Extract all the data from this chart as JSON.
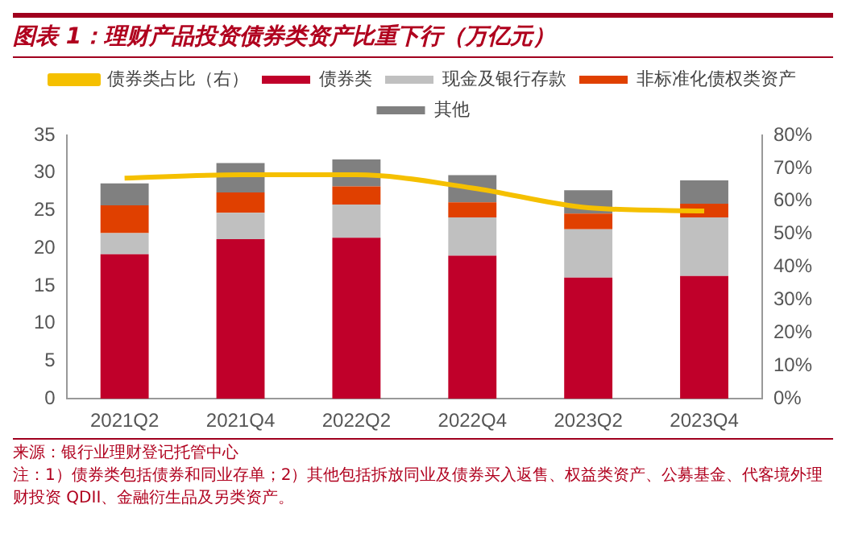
{
  "chart_data": {
    "type": "bar",
    "title": "图表 1：理财产品投资债券类资产比重下行（万亿元）",
    "categories": [
      "2021Q2",
      "2021Q4",
      "2022Q2",
      "2022Q4",
      "2023Q2",
      "2023Q4"
    ],
    "stacked": true,
    "series": [
      {
        "name": "债券类",
        "color": "#c0002a",
        "values": [
          19.2,
          21.2,
          21.4,
          19.0,
          16.1,
          16.3
        ]
      },
      {
        "name": "现金及银行存款",
        "color": "#c0c0c0",
        "values": [
          2.8,
          3.5,
          4.4,
          5.1,
          6.4,
          7.8
        ]
      },
      {
        "name": "非标准化债权类资产",
        "color": "#e04000",
        "values": [
          3.7,
          2.7,
          2.4,
          2.0,
          2.1,
          1.8
        ]
      },
      {
        "name": "其他",
        "color": "#808080",
        "values": [
          2.9,
          3.9,
          3.6,
          3.6,
          3.1,
          3.1
        ]
      },
      {
        "name": "债券类占比（右）",
        "type": "line",
        "axis": "y2",
        "color": "#f5c000",
        "values": [
          67,
          68,
          68,
          64,
          58,
          57
        ]
      }
    ],
    "ylim": [
      0,
      35
    ],
    "yticks": [
      0,
      5,
      10,
      15,
      20,
      25,
      30,
      35
    ],
    "y2lim": [
      0,
      80
    ],
    "y2ticks": [
      {
        "value": 0,
        "label": "0%"
      },
      {
        "value": 10,
        "label": "10%"
      },
      {
        "value": 20,
        "label": "20%"
      },
      {
        "value": 30,
        "label": "30%"
      },
      {
        "value": 40,
        "label": "40%"
      },
      {
        "value": 50,
        "label": "50%"
      },
      {
        "value": 60,
        "label": "60%"
      },
      {
        "value": 70,
        "label": "70%"
      },
      {
        "value": 80,
        "label": "80%"
      }
    ],
    "grid": false,
    "legend": "top",
    "marker": "none",
    "annotations": [
      "来源：银行业理财登记托管中心",
      "注：1）债券类包括债券和同业存单；2）其他包括拆放同业及债券买入返售、权益类资产、公募基金、代客境外理财投资 QDII、金融衍生品及另类资产。"
    ]
  }
}
